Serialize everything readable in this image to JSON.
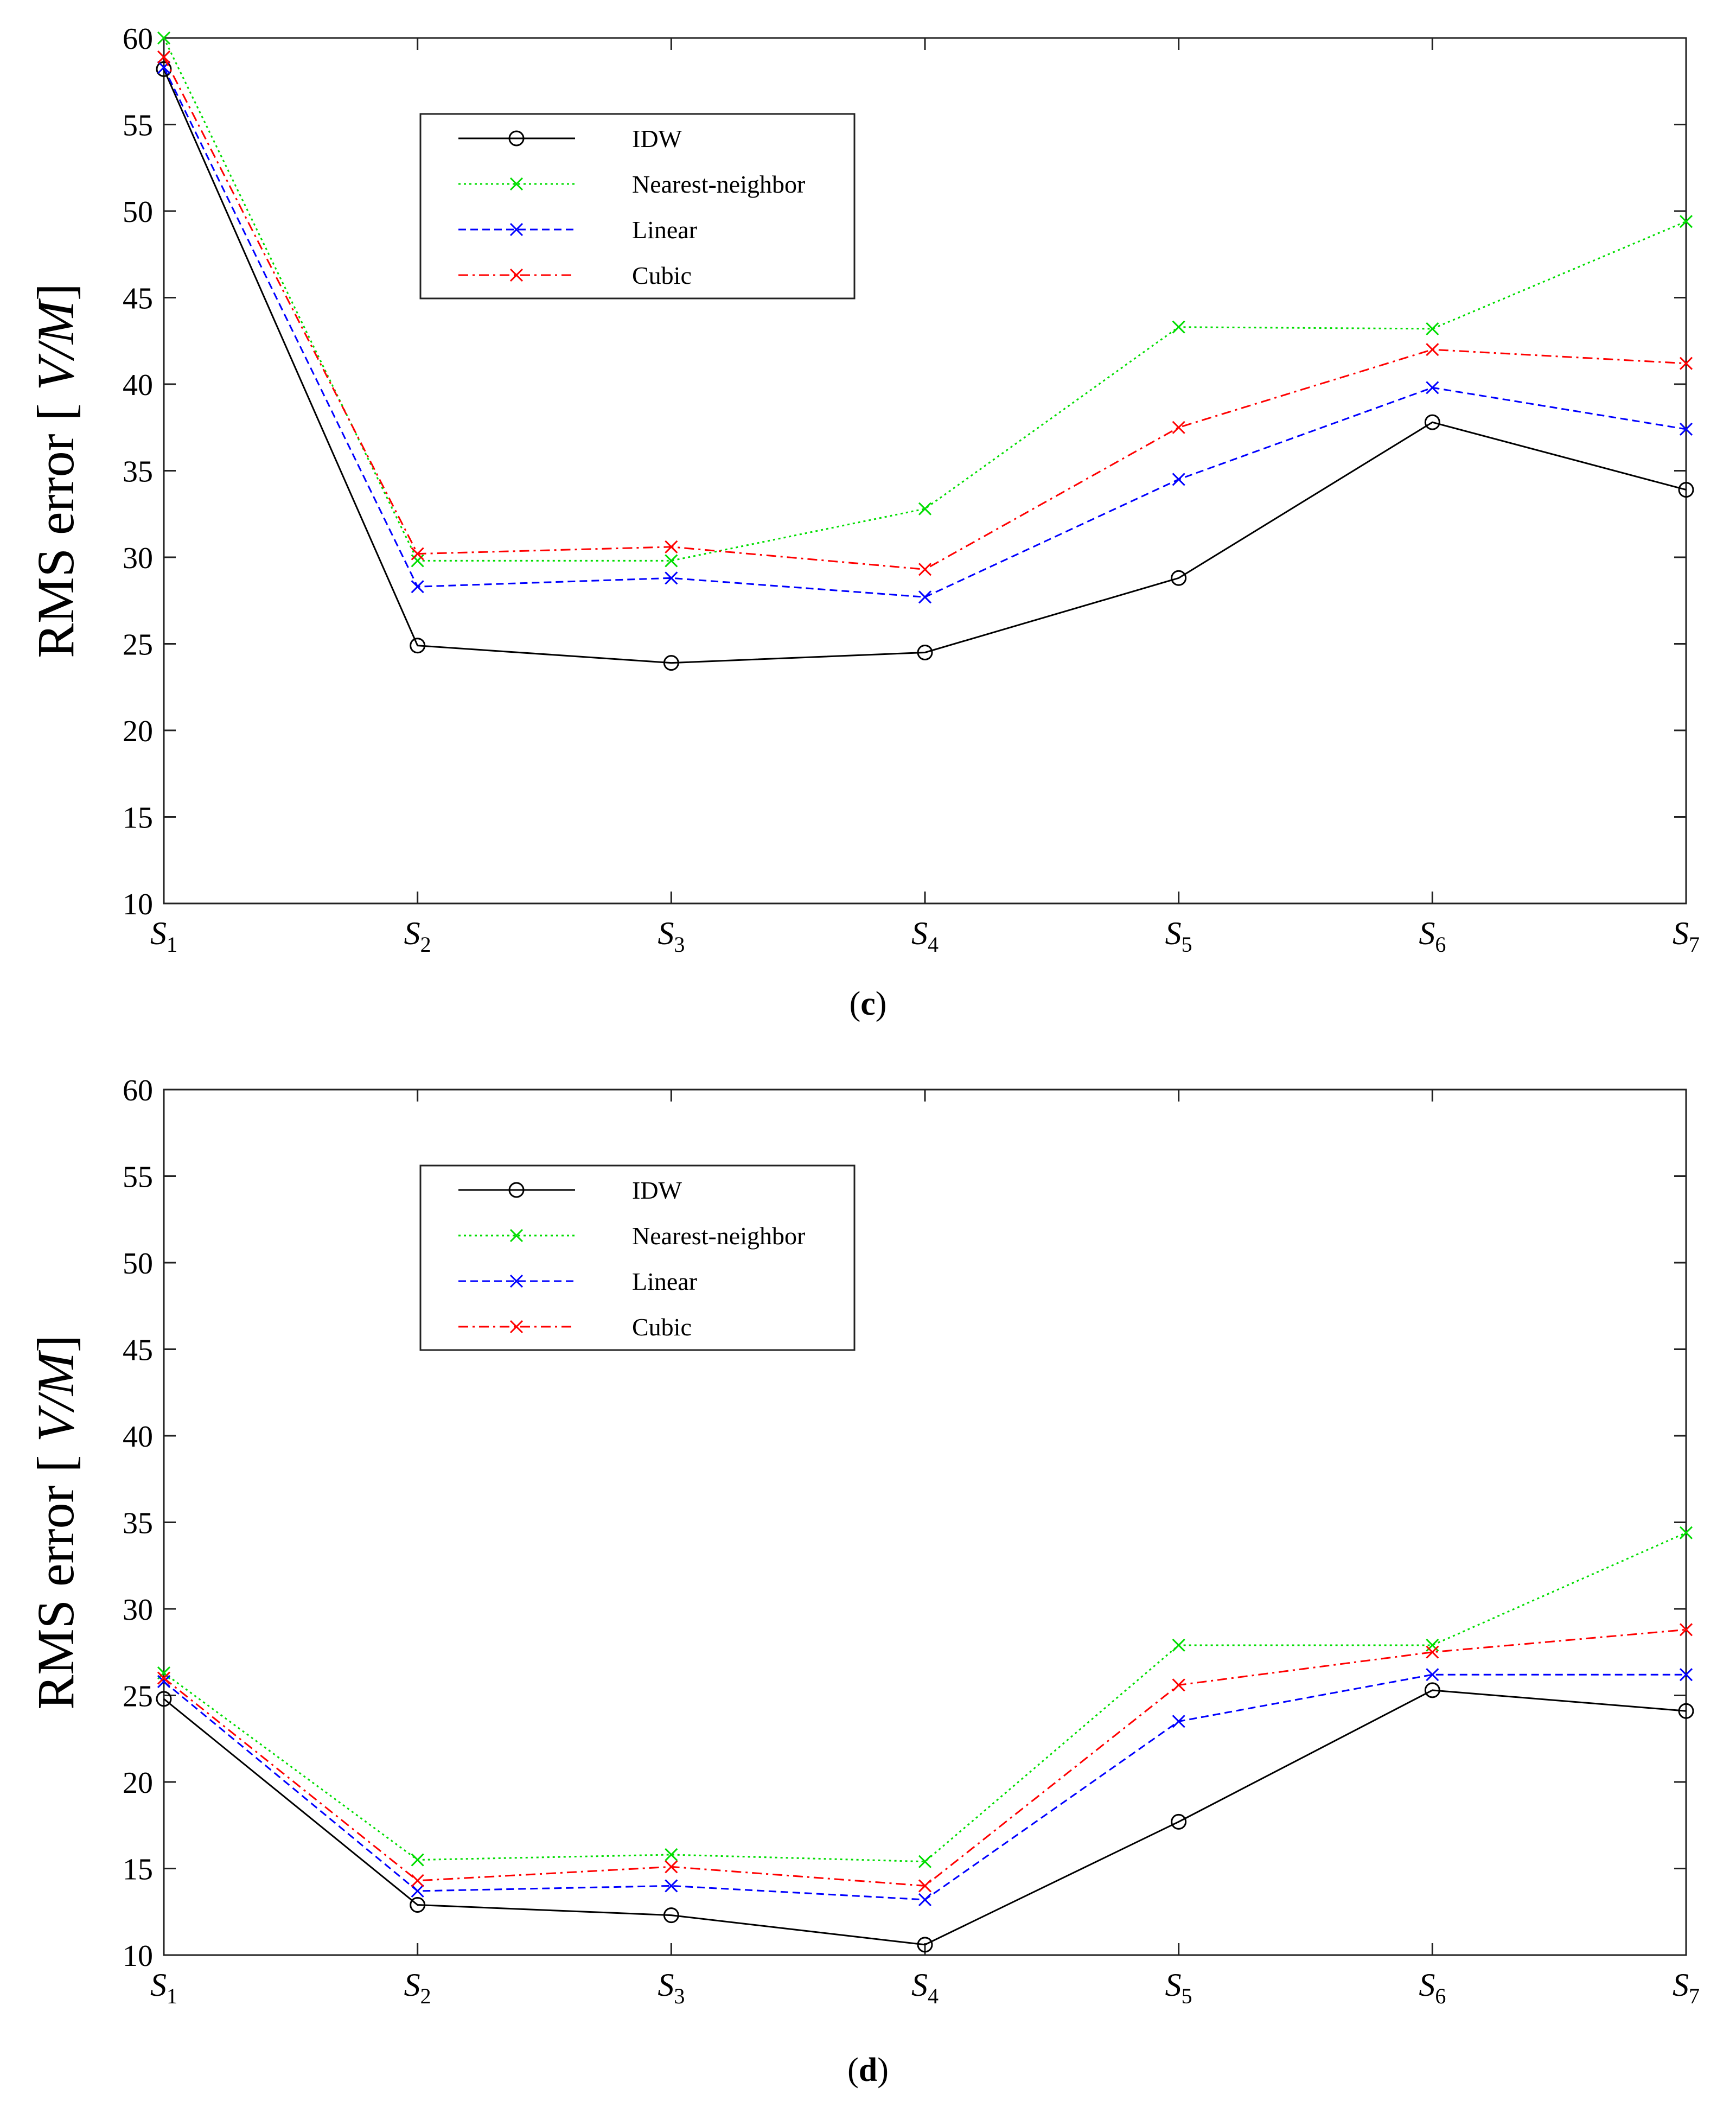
{
  "panels": [
    {
      "caption_open": "(",
      "caption_letter": "c",
      "caption_close": ")"
    },
    {
      "caption_open": "(",
      "caption_letter": "d",
      "caption_close": ")"
    }
  ],
  "chart_data": [
    {
      "type": "line",
      "ylabel": "RMS error [ V/M]",
      "ylabel_main": "RMS error [",
      "ylabel_unit": "V/M",
      "ylabel_close": "]",
      "ylim": [
        10,
        60
      ],
      "yticks": [
        10,
        15,
        20,
        25,
        30,
        35,
        40,
        45,
        50,
        55,
        60
      ],
      "categories": [
        {
          "base": "S",
          "sub": "1"
        },
        {
          "base": "S",
          "sub": "2"
        },
        {
          "base": "S",
          "sub": "3"
        },
        {
          "base": "S",
          "sub": "4"
        },
        {
          "base": "S",
          "sub": "5"
        },
        {
          "base": "S",
          "sub": "6"
        },
        {
          "base": "S",
          "sub": "7"
        }
      ],
      "grid": false,
      "legend_position": "top-left",
      "series": [
        {
          "name": "IDW",
          "color": "#000000",
          "marker": "circle",
          "dash": "solid",
          "values": [
            58.2,
            24.9,
            23.9,
            24.5,
            28.8,
            37.8,
            33.9
          ]
        },
        {
          "name": "Nearest-neighbor",
          "color": "#00dd00",
          "marker": "x",
          "dash": "dotted",
          "values": [
            60.0,
            29.8,
            29.8,
            32.8,
            43.3,
            43.2,
            49.4
          ]
        },
        {
          "name": "Linear",
          "color": "#0000ff",
          "marker": "x",
          "dash": "dashed",
          "values": [
            58.3,
            28.3,
            28.8,
            27.7,
            34.5,
            39.8,
            37.4
          ]
        },
        {
          "name": "Cubic",
          "color": "#ff0000",
          "marker": "x",
          "dash": "dashdot",
          "values": [
            58.9,
            30.2,
            30.6,
            29.3,
            37.5,
            42.0,
            41.2
          ]
        }
      ]
    },
    {
      "type": "line",
      "ylabel": "RMS error [ V/M]",
      "ylabel_main": "RMS error [",
      "ylabel_unit": "V/M",
      "ylabel_close": "]",
      "ylim": [
        10,
        60
      ],
      "yticks": [
        10,
        15,
        20,
        25,
        30,
        35,
        40,
        45,
        50,
        55,
        60
      ],
      "categories": [
        {
          "base": "S",
          "sub": "1"
        },
        {
          "base": "S",
          "sub": "2"
        },
        {
          "base": "S",
          "sub": "3"
        },
        {
          "base": "S",
          "sub": "4"
        },
        {
          "base": "S",
          "sub": "5"
        },
        {
          "base": "S",
          "sub": "6"
        },
        {
          "base": "S",
          "sub": "7"
        }
      ],
      "grid": false,
      "legend_position": "top-left",
      "series": [
        {
          "name": "IDW",
          "color": "#000000",
          "marker": "circle",
          "dash": "solid",
          "values": [
            24.8,
            12.9,
            12.3,
            10.6,
            17.7,
            25.3,
            24.1
          ]
        },
        {
          "name": "Nearest-neighbor",
          "color": "#00dd00",
          "marker": "x",
          "dash": "dotted",
          "values": [
            26.3,
            15.5,
            15.8,
            15.4,
            27.9,
            27.9,
            34.4
          ]
        },
        {
          "name": "Linear",
          "color": "#0000ff",
          "marker": "x",
          "dash": "dashed",
          "values": [
            25.8,
            13.7,
            14.0,
            13.2,
            23.5,
            26.2,
            26.2
          ]
        },
        {
          "name": "Cubic",
          "color": "#ff0000",
          "marker": "x",
          "dash": "dashdot",
          "values": [
            26.0,
            14.3,
            15.1,
            14.0,
            25.6,
            27.5,
            28.8
          ]
        }
      ]
    }
  ]
}
